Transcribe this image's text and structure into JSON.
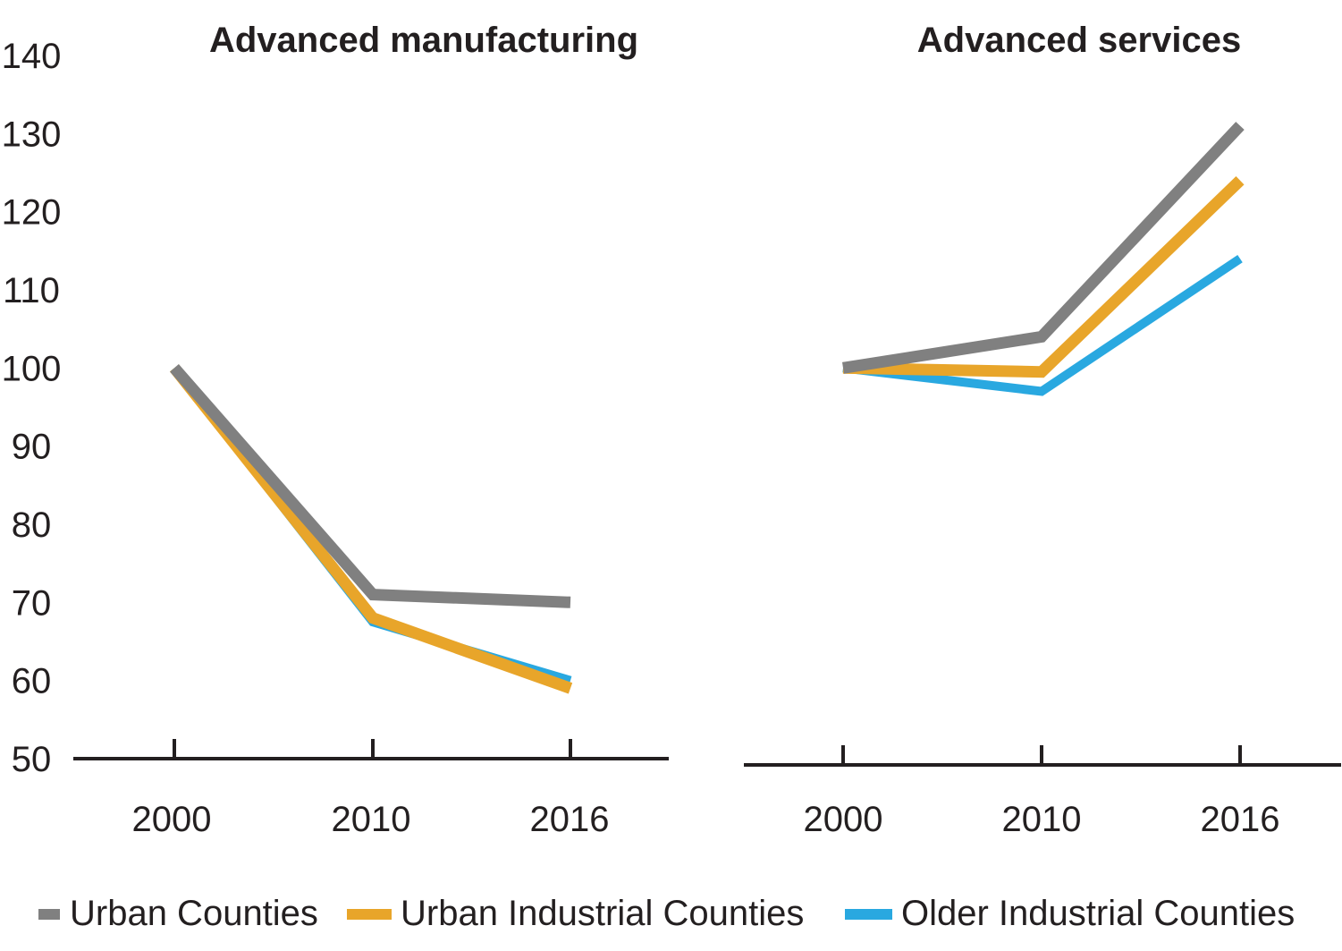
{
  "chart_data": [
    {
      "type": "line",
      "title": "Advanced manufacturing",
      "x": [
        "2000",
        "2010",
        "2016"
      ],
      "ylim": [
        50,
        140
      ],
      "series": [
        {
          "name": "Urban Counties",
          "color": "#808080",
          "values": [
            100,
            71,
            70
          ]
        },
        {
          "name": "Urban Industrial Counties",
          "color": "#e8a52a",
          "values": [
            100,
            68,
            59
          ]
        },
        {
          "name": "Older Industrial Counties",
          "color": "#29a8e0",
          "values": [
            100,
            67.5,
            60
          ]
        }
      ]
    },
    {
      "type": "line",
      "title": "Advanced services",
      "x": [
        "2000",
        "2010",
        "2016"
      ],
      "ylim": [
        50,
        140
      ],
      "series": [
        {
          "name": "Urban Counties",
          "color": "#808080",
          "values": [
            100,
            104,
            131
          ]
        },
        {
          "name": "Urban Industrial Counties",
          "color": "#e8a52a",
          "values": [
            100,
            99.5,
            124
          ]
        },
        {
          "name": "Older Industrial Counties",
          "color": "#29a8e0",
          "values": [
            100,
            97,
            114
          ]
        }
      ]
    }
  ],
  "y_ticks": [
    "140",
    "130",
    "120",
    "110",
    "100",
    "90",
    "80",
    "70",
    "60",
    "50"
  ],
  "legend": [
    {
      "name": "Urban Counties",
      "color": "#808080"
    },
    {
      "name": "Urban Industrial Counties",
      "color": "#e8a52a"
    },
    {
      "name": "Older Industrial Counties",
      "color": "#29a8e0"
    }
  ]
}
